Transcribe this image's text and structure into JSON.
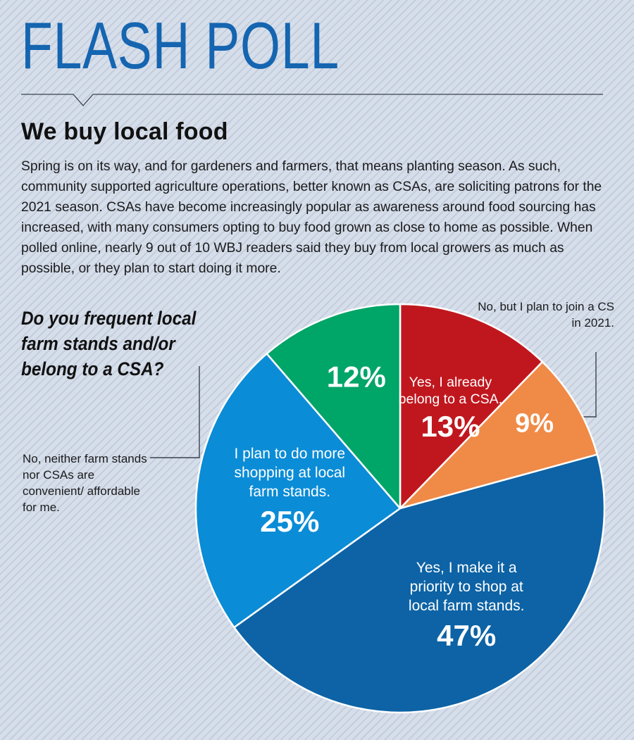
{
  "header": {
    "title": "FLASH POLL",
    "headline": "We buy local food"
  },
  "intro": "Spring is on its way, and for gardeners and farmers, that means planting season. As such, community supported agriculture operations, better known as CSAs, are soliciting patrons for the 2021 season. CSAs have become increasingly popular as awareness around food sourcing has increased, with many consumers opting to buy food grown as close to home as possible. When polled online, nearly 9 out of 10 WBJ readers said they buy from local growers as much as possible, or they plan to start doing it more.",
  "question": "Do you frequent local farm stands and/or belong to a CSA?",
  "callouts": {
    "csa_plan": "No, but I plan to join a CS in 2021.",
    "neither": "No, neither farm stands nor CSAs are convenient/ affordable for me."
  },
  "chart_data": {
    "type": "pie",
    "order": "clockwise from top",
    "slices": [
      {
        "label_lines": [
          "Yes, I already",
          "belong to a CSA."
        ],
        "value": 13,
        "value_text": "13%",
        "color": "#c0171e"
      },
      {
        "label_lines": [],
        "value": 9,
        "value_text": "9%",
        "color": "#f08a47"
      },
      {
        "label_lines": [
          "Yes, I make it a",
          "priority to shop at",
          "local farm stands."
        ],
        "value": 47,
        "value_text": "47%",
        "color": "#0d63a5"
      },
      {
        "label_lines": [
          "I plan to do more",
          "shopping at local",
          "farm stands."
        ],
        "value": 25,
        "value_text": "25%",
        "color": "#0b8cd6"
      },
      {
        "label_lines": [],
        "value": 12,
        "value_text": "12%",
        "color": "#00a568"
      }
    ]
  }
}
